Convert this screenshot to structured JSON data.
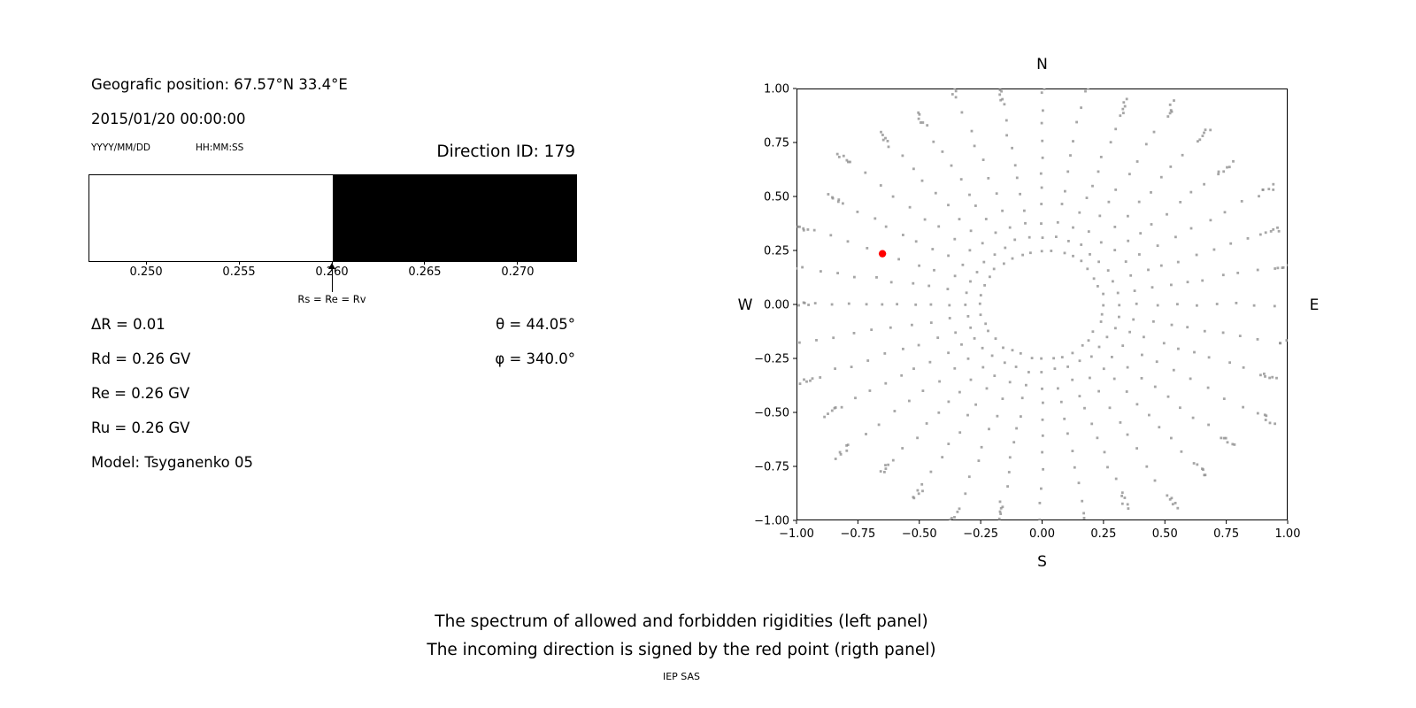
{
  "info": {
    "geographic_position": "Geografic position: 67.57°N 33.4°E",
    "datetime": "2015/01/20 00:00:00",
    "date_format": "YYYY/MM/DD",
    "time_format": "HH:MM:SS",
    "direction_id": "Direction ID: 179",
    "params_left": [
      "ΔR = 0.01",
      "Rd = 0.26 GV",
      "Re = 0.26 GV",
      "Ru = 0.26 GV",
      "Model: Tsyganenko 05"
    ],
    "params_right": [
      "θ = 44.05°",
      "φ = 340.0°"
    ]
  },
  "caption": {
    "line1": "The spectrum of allowed and forbidden rigidities (left panel)",
    "line2": "The incoming direction is signed by the red point (rigth panel)",
    "credit": "IEP SAS"
  },
  "chart_data": [
    {
      "type": "bar",
      "name": "spectrum of allowed and forbidden rigidities",
      "xlim": [
        0.2469,
        0.2731
      ],
      "x_tick_labels": [
        "0.250",
        "0.255",
        "0.260",
        "0.265",
        "0.270"
      ],
      "x_tick_values": [
        0.25,
        0.255,
        0.26,
        0.265,
        0.27
      ],
      "segments": [
        {
          "label": "allowed rigidities",
          "from": 0.2469,
          "to": 0.26,
          "color": "#ffffff"
        },
        {
          "label": "forbidden rigidities",
          "from": 0.26,
          "to": 0.2731,
          "color": "#000000"
        }
      ],
      "annotation": {
        "x": 0.26,
        "label": "Rs = Re = Rv"
      }
    },
    {
      "type": "scatter",
      "name": "incoming direction map",
      "xlim": [
        -1.0,
        1.0
      ],
      "ylim": [
        -1.0,
        1.0
      ],
      "x_ticks": [
        -1.0,
        -0.75,
        -0.5,
        -0.25,
        0.0,
        0.25,
        0.5,
        0.75,
        1.0
      ],
      "y_ticks": [
        1.0,
        0.75,
        0.5,
        0.25,
        0.0,
        -0.25,
        -0.5,
        -0.75,
        -1.0
      ],
      "compass_labels": {
        "top": "N",
        "bottom": "S",
        "left": "W",
        "right": "E"
      },
      "grid": false,
      "dot_color": "#909090",
      "pattern": {
        "description": "36 radial spokes of small gray dots every 10 degrees, sparse near centre and clustered at outer tips, plus an inner ring of dots",
        "spoke_count": 36,
        "spoke_r_min": 0.31,
        "spoke_r_max": 1.05,
        "dots_per_spoke": 15,
        "inner_ring_radius": 0.25,
        "inner_ring_dot_count": 36
      },
      "red_point": {
        "x": -0.65,
        "y": 0.235,
        "color": "#ff0000",
        "label": "incoming direction"
      }
    }
  ]
}
